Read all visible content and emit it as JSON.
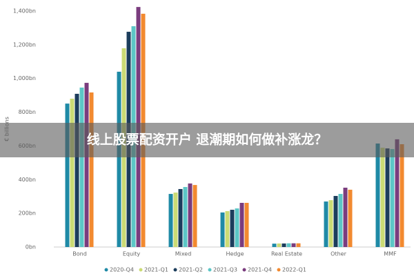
{
  "chart_data": {
    "type": "bar",
    "y_label": "€ billions",
    "categories": [
      "Bond",
      "Equity",
      "Mixed",
      "Hedge",
      "Real Estate",
      "Other",
      "MMF"
    ],
    "series": [
      {
        "name": "2020-Q4",
        "color": "#1f8aa6",
        "values": [
          851,
          1040,
          315,
          205,
          20,
          270,
          614
        ]
      },
      {
        "name": "2021-Q1",
        "color": "#cbdb74",
        "values": [
          880,
          1179,
          323,
          213,
          21,
          278,
          589
        ]
      },
      {
        "name": "2021-Q2",
        "color": "#1c3d5c",
        "values": [
          909,
          1277,
          344,
          221,
          21,
          303,
          585
        ]
      },
      {
        "name": "2021-Q3",
        "color": "#5cc6c6",
        "values": [
          946,
          1310,
          356,
          229,
          22,
          315,
          581
        ]
      },
      {
        "name": "2021-Q4",
        "color": "#7a3c7e",
        "values": [
          974,
          1424,
          377,
          262,
          22,
          352,
          639
        ]
      },
      {
        "name": "2022-Q1",
        "color": "#f28a30",
        "values": [
          917,
          1384,
          368,
          262,
          22,
          340,
          610
        ]
      }
    ],
    "ylim": [
      0,
      1400
    ],
    "yticks": [
      {
        "value": 0,
        "label": "0bn"
      },
      {
        "value": 200,
        "label": "200bn"
      },
      {
        "value": 400,
        "label": "400bn"
      },
      {
        "value": 600,
        "label": "600bn"
      },
      {
        "value": 800,
        "label": "800bn"
      },
      {
        "value": 1000,
        "label": "1,000bn"
      },
      {
        "value": 1200,
        "label": "1,200bn"
      },
      {
        "value": 1400,
        "label": "1,400bn"
      }
    ],
    "grid": false,
    "legend": "bottom"
  },
  "banner": "线上股票配资开户 退潮期如何做补涨龙？"
}
